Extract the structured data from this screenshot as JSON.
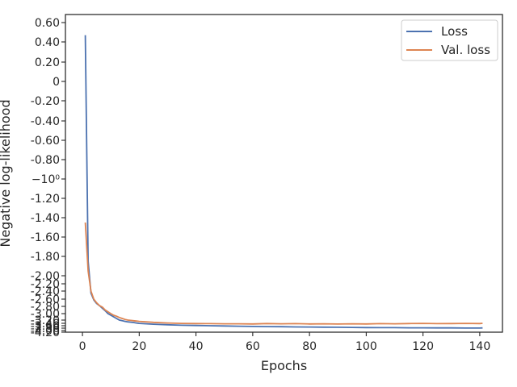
{
  "chart_data": {
    "type": "line",
    "xlabel": "Epochs",
    "ylabel": "Negative log-likelihood",
    "xlim": [
      -6,
      148
    ],
    "ylim": [
      -4.2,
      0.6
    ],
    "y_scale": "symlog",
    "grid": false,
    "legend_position": "top-right",
    "x_ticks": [
      0,
      20,
      40,
      60,
      80,
      100,
      120,
      140
    ],
    "x_tick_labels": [
      "0",
      "20",
      "40",
      "60",
      "80",
      "100",
      "120",
      "140"
    ],
    "y_ticks": [
      0.6,
      0.4,
      0.2,
      0,
      -0.2,
      -0.4,
      -0.6,
      -0.8,
      -1.0,
      -1.2,
      -1.4,
      -1.6,
      -1.8,
      -2.0,
      -2.2,
      -2.4,
      -2.6,
      -2.8,
      -3.0,
      -3.2,
      -3.4,
      -3.6,
      -3.8,
      -4.0,
      -4.2
    ],
    "y_tick_labels": [
      "0.60",
      "0.40",
      "0.20",
      "0",
      "-0.20",
      "-0.40",
      "-0.60",
      "-0.80",
      "−10⁰",
      "-1.20",
      "-1.40",
      "-1.60",
      "-1.80",
      "-2.00",
      "-2.20",
      "-2.40",
      "-2.60",
      "-2.80",
      "-3.00",
      "-3.20",
      "-3.40",
      "-3.60",
      "-3.80",
      "-4.00",
      "-4.20"
    ],
    "series": [
      {
        "name": "Loss",
        "color": "#4c72b0",
        "x": [
          1,
          2,
          3,
          4,
          5,
          6,
          7,
          8,
          9,
          10,
          11,
          12,
          13,
          14,
          15,
          16,
          17,
          18,
          19,
          20,
          25,
          30,
          35,
          40,
          45,
          50,
          55,
          60,
          65,
          70,
          75,
          80,
          85,
          90,
          95,
          100,
          105,
          110,
          115,
          120,
          125,
          130,
          135,
          140,
          141
        ],
        "y": [
          0.47,
          -1.85,
          -2.45,
          -2.62,
          -2.72,
          -2.78,
          -2.85,
          -2.92,
          -3.0,
          -3.05,
          -3.1,
          -3.15,
          -3.2,
          -3.24,
          -3.28,
          -3.31,
          -3.33,
          -3.35,
          -3.38,
          -3.41,
          -3.47,
          -3.52,
          -3.56,
          -3.58,
          -3.6,
          -3.62,
          -3.64,
          -3.66,
          -3.67,
          -3.68,
          -3.7,
          -3.71,
          -3.72,
          -3.73,
          -3.74,
          -3.75,
          -3.76,
          -3.76,
          -3.77,
          -3.77,
          -3.78,
          -3.78,
          -3.79,
          -3.79,
          -3.78
        ]
      },
      {
        "name": "Val. loss",
        "color": "#dd8452",
        "x": [
          1,
          2,
          3,
          4,
          5,
          6,
          7,
          8,
          9,
          10,
          11,
          12,
          13,
          14,
          15,
          16,
          17,
          18,
          19,
          20,
          25,
          30,
          35,
          40,
          45,
          50,
          55,
          60,
          65,
          70,
          75,
          80,
          85,
          90,
          95,
          100,
          105,
          110,
          115,
          120,
          125,
          130,
          135,
          140,
          141
        ],
        "y": [
          -1.45,
          -1.95,
          -2.4,
          -2.6,
          -2.7,
          -2.78,
          -2.82,
          -2.9,
          -2.95,
          -3.0,
          -3.05,
          -3.08,
          -3.12,
          -3.15,
          -3.18,
          -3.2,
          -3.22,
          -3.24,
          -3.26,
          -3.28,
          -3.34,
          -3.38,
          -3.41,
          -3.42,
          -3.43,
          -3.44,
          -3.44,
          -3.45,
          -3.42,
          -3.44,
          -3.43,
          -3.45,
          -3.44,
          -3.46,
          -3.44,
          -3.45,
          -3.43,
          -3.44,
          -3.42,
          -3.41,
          -3.43,
          -3.42,
          -3.41,
          -3.42,
          -3.4
        ]
      }
    ]
  }
}
